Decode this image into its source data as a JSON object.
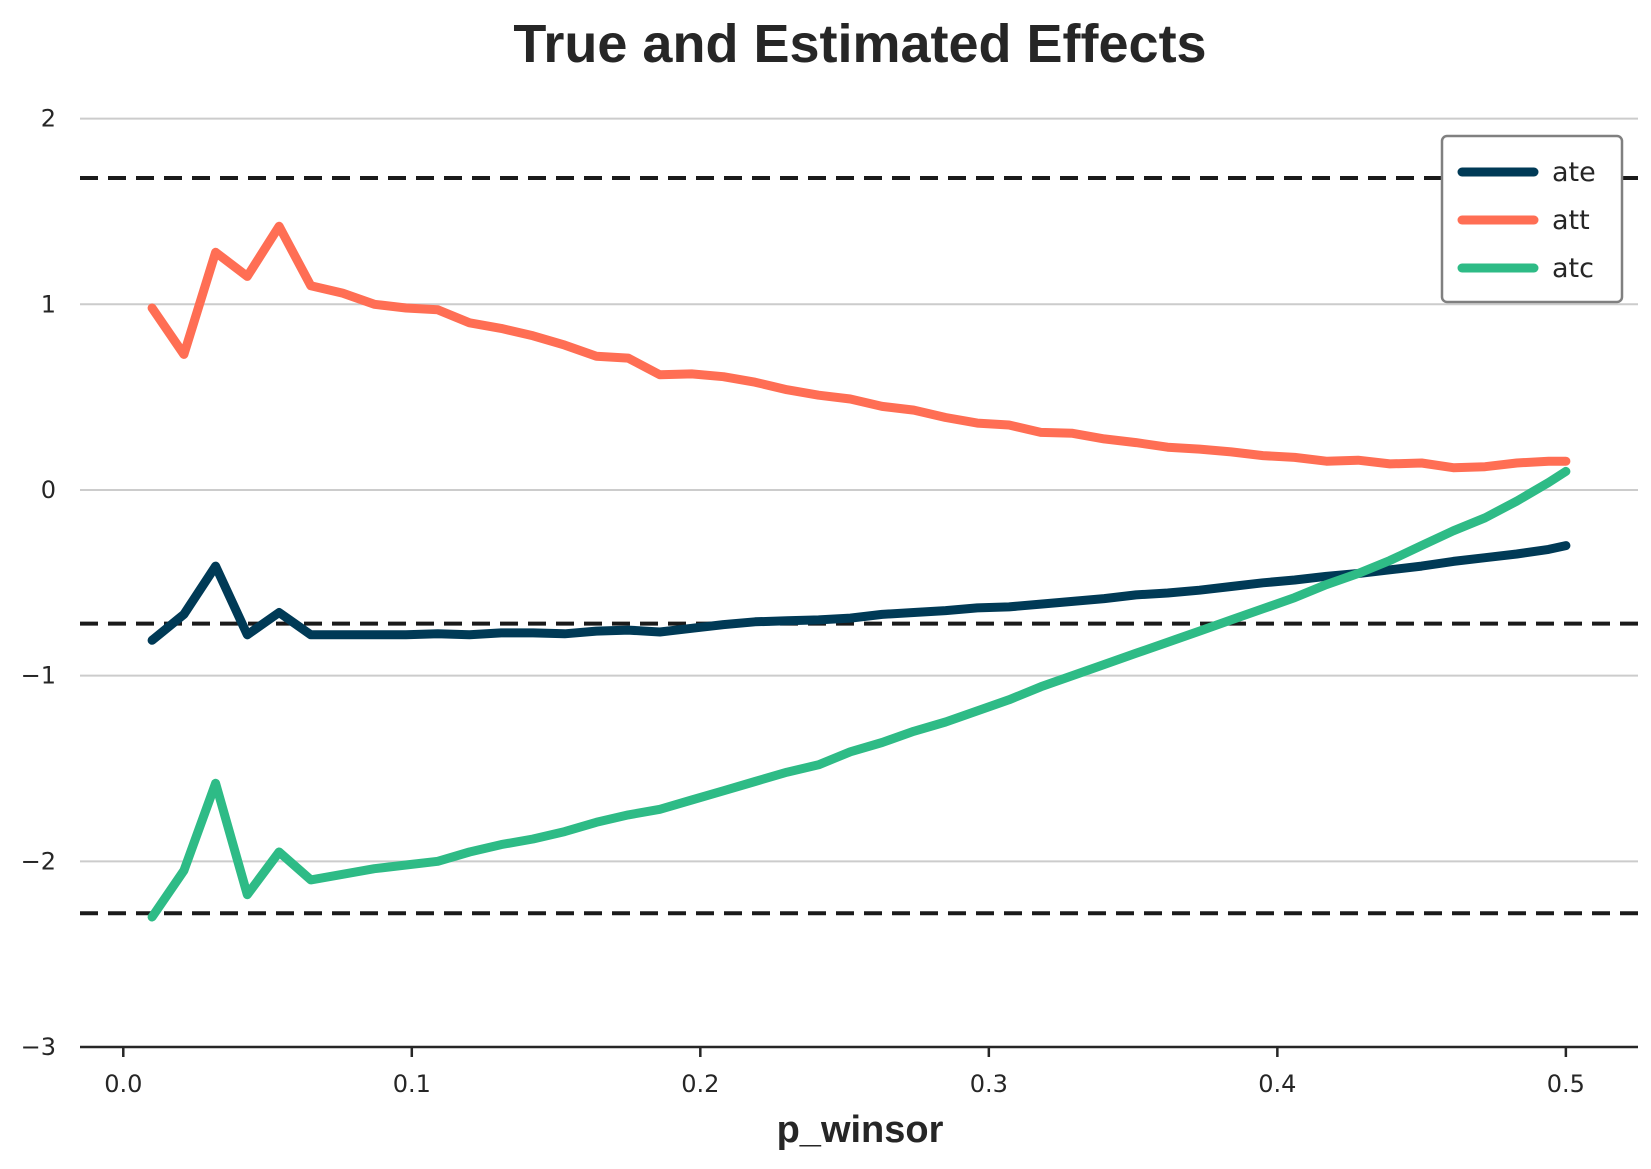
{
  "chart_data": {
    "type": "line",
    "title": "True and Estimated Effects",
    "xlabel": "p_winsor",
    "ylabel": "",
    "xlim": [
      -0.015,
      0.525
    ],
    "ylim": [
      -3,
      2.1
    ],
    "xticks": [
      0.0,
      0.1,
      0.2,
      0.3,
      0.4,
      0.5
    ],
    "xtick_labels": [
      "0.0",
      "0.1",
      "0.2",
      "0.3",
      "0.4",
      "0.5"
    ],
    "yticks": [
      -3,
      -2,
      -1,
      0,
      1,
      2
    ],
    "ytick_labels": [
      "−3",
      "−2",
      "−1",
      "0",
      "1",
      "2"
    ],
    "grid": "horizontal",
    "legend_position": "top-right",
    "reference_lines": [
      1.68,
      -0.72,
      -2.28
    ],
    "x": [
      0.01,
      0.021,
      0.032,
      0.043,
      0.054,
      0.065,
      0.076,
      0.087,
      0.098,
      0.109,
      0.12,
      0.131,
      0.142,
      0.153,
      0.164,
      0.175,
      0.186,
      0.197,
      0.208,
      0.219,
      0.23,
      0.241,
      0.252,
      0.263,
      0.274,
      0.285,
      0.296,
      0.307,
      0.318,
      0.329,
      0.34,
      0.351,
      0.362,
      0.373,
      0.384,
      0.395,
      0.406,
      0.417,
      0.428,
      0.439,
      0.45,
      0.461,
      0.472,
      0.483,
      0.494,
      0.5
    ],
    "series": [
      {
        "name": "ate",
        "color": "#003a56",
        "values": [
          -0.81,
          -0.67,
          -0.41,
          -0.78,
          -0.66,
          -0.78,
          -0.78,
          -0.78,
          -0.78,
          -0.775,
          -0.78,
          -0.77,
          -0.77,
          -0.775,
          -0.76,
          -0.755,
          -0.765,
          -0.745,
          -0.725,
          -0.71,
          -0.705,
          -0.7,
          -0.69,
          -0.67,
          -0.66,
          -0.65,
          -0.635,
          -0.63,
          -0.615,
          -0.6,
          -0.585,
          -0.565,
          -0.555,
          -0.54,
          -0.52,
          -0.5,
          -0.485,
          -0.465,
          -0.45,
          -0.43,
          -0.41,
          -0.385,
          -0.365,
          -0.345,
          -0.32,
          -0.3
        ]
      },
      {
        "name": "att",
        "color": "#ff6e54",
        "values": [
          0.98,
          0.73,
          1.28,
          1.15,
          1.42,
          1.1,
          1.06,
          1.0,
          0.98,
          0.97,
          0.9,
          0.87,
          0.83,
          0.78,
          0.72,
          0.71,
          0.62,
          0.625,
          0.61,
          0.58,
          0.54,
          0.51,
          0.49,
          0.45,
          0.43,
          0.39,
          0.36,
          0.35,
          0.31,
          0.305,
          0.275,
          0.255,
          0.23,
          0.22,
          0.205,
          0.185,
          0.175,
          0.155,
          0.16,
          0.14,
          0.145,
          0.12,
          0.125,
          0.145,
          0.155,
          0.155
        ]
      },
      {
        "name": "atc",
        "color": "#2ebb86",
        "values": [
          -2.3,
          -2.05,
          -1.58,
          -2.18,
          -1.95,
          -2.1,
          -2.07,
          -2.04,
          -2.02,
          -2.0,
          -1.95,
          -1.91,
          -1.88,
          -1.84,
          -1.79,
          -1.75,
          -1.72,
          -1.67,
          -1.62,
          -1.57,
          -1.52,
          -1.48,
          -1.41,
          -1.36,
          -1.3,
          -1.25,
          -1.19,
          -1.13,
          -1.06,
          -1.0,
          -0.94,
          -0.88,
          -0.82,
          -0.76,
          -0.7,
          -0.64,
          -0.58,
          -0.51,
          -0.45,
          -0.38,
          -0.3,
          -0.22,
          -0.15,
          -0.06,
          0.04,
          0.1
        ]
      }
    ]
  }
}
